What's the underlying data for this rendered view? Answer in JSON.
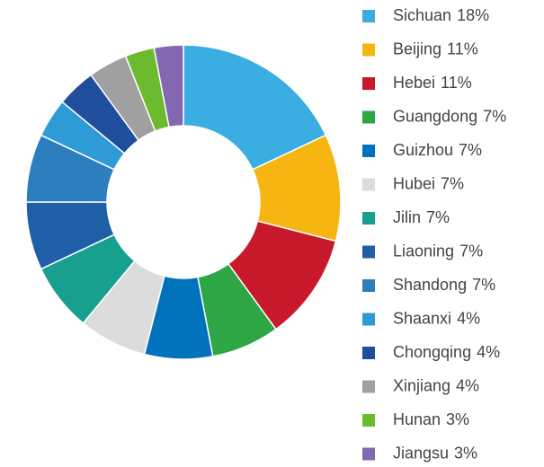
{
  "chart_data": {
    "type": "donut",
    "categories": [
      "Sichuan",
      "Beijing",
      "Hebei",
      "Guangdong",
      "Guizhou",
      "Hubei",
      "Jilin",
      "Liaoning",
      "Shandong",
      "Shaanxi",
      "Chongqing",
      "Xinjiang",
      "Hunan",
      "Jiangsu"
    ],
    "values": [
      18,
      11,
      11,
      7,
      7,
      7,
      7,
      7,
      7,
      4,
      4,
      4,
      3,
      3
    ],
    "value_labels": [
      "18%",
      "11%",
      "11%",
      "7%",
      "7%",
      "7%",
      "7%",
      "7%",
      "7%",
      "4%",
      "4%",
      "4%",
      "3%",
      "3%"
    ],
    "colors": [
      "#3aaee0",
      "#f7b512",
      "#c8192b",
      "#2ea645",
      "#0072bc",
      "#dcdcdc",
      "#17a08d",
      "#1e5fa8",
      "#2d7ebf",
      "#2e9ad6",
      "#1f4e9c",
      "#a0a0a0",
      "#6cbb2e",
      "#8467b1"
    ],
    "legend": "right"
  }
}
